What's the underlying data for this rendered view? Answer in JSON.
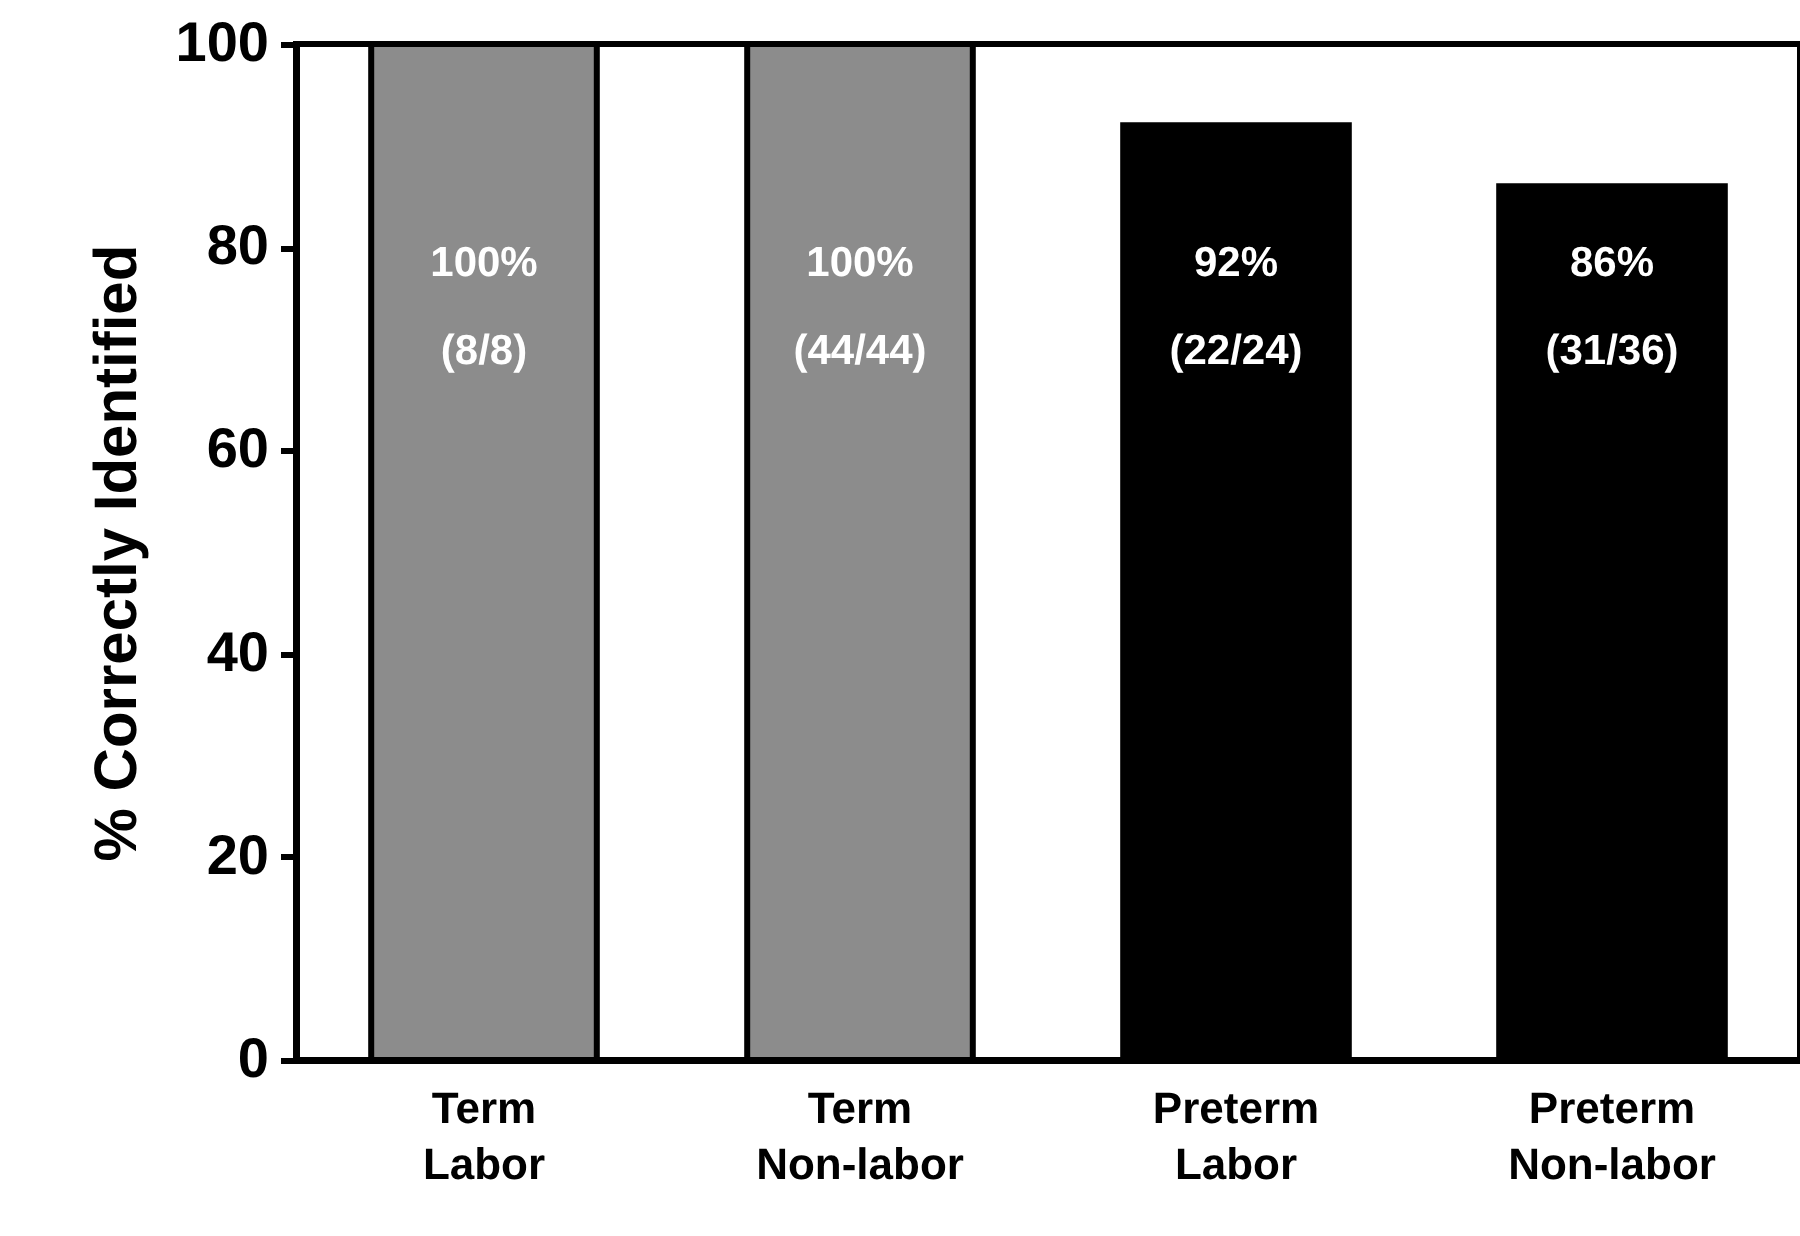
{
  "chart_data": {
    "type": "bar",
    "ylabel": "% Correctly Identified",
    "categories": [
      "Term Labor",
      "Term Non-labor",
      "Preterm Labor",
      "Preterm Non-labor"
    ],
    "values": [
      100,
      100,
      92,
      86
    ],
    "colors": [
      "#8c8c8c",
      "#8c8c8c",
      "#000000",
      "#000000"
    ],
    "value_labels": [
      "100% (8/8)",
      "100% (44/44)",
      "92% (22/24)",
      "86% (31/36)"
    ],
    "ylim": [
      0,
      100
    ],
    "yticks": [
      0,
      20,
      40,
      60,
      80,
      100
    ],
    "grid": false
  }
}
